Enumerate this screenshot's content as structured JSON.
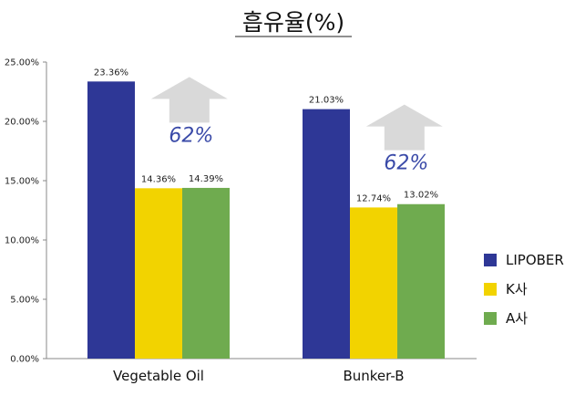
{
  "chart_data": {
    "type": "bar",
    "title": "흡유율(%)",
    "xlabel": "",
    "ylabel": "",
    "ylim": [
      0,
      25
    ],
    "y_tick_labels": [
      "0.00%",
      "5.00%",
      "10.00%",
      "15.00%",
      "20.00%",
      "25.00%"
    ],
    "categories": [
      "Vegetable Oil",
      "Bunker-B"
    ],
    "series": [
      {
        "name": "LIPOBER",
        "values": [
          23.36,
          21.03
        ],
        "labels": [
          "23.36%",
          "21.03%"
        ],
        "color": "#2e3796"
      },
      {
        "name": "K사",
        "values": [
          14.36,
          12.74
        ],
        "labels": [
          "14.36%",
          "12.74%"
        ],
        "color": "#f2d300"
      },
      {
        "name": "A사",
        "values": [
          14.39,
          13.02
        ],
        "labels": [
          "14.39%",
          "13.02%"
        ],
        "color": "#6fab4f"
      }
    ],
    "annotations": [
      {
        "text": "62%",
        "category": "Vegetable Oil",
        "shape": "up-arrow"
      },
      {
        "text": "62%",
        "category": "Bunker-B",
        "shape": "up-arrow"
      }
    ],
    "legend_position": "right",
    "grid": false
  }
}
